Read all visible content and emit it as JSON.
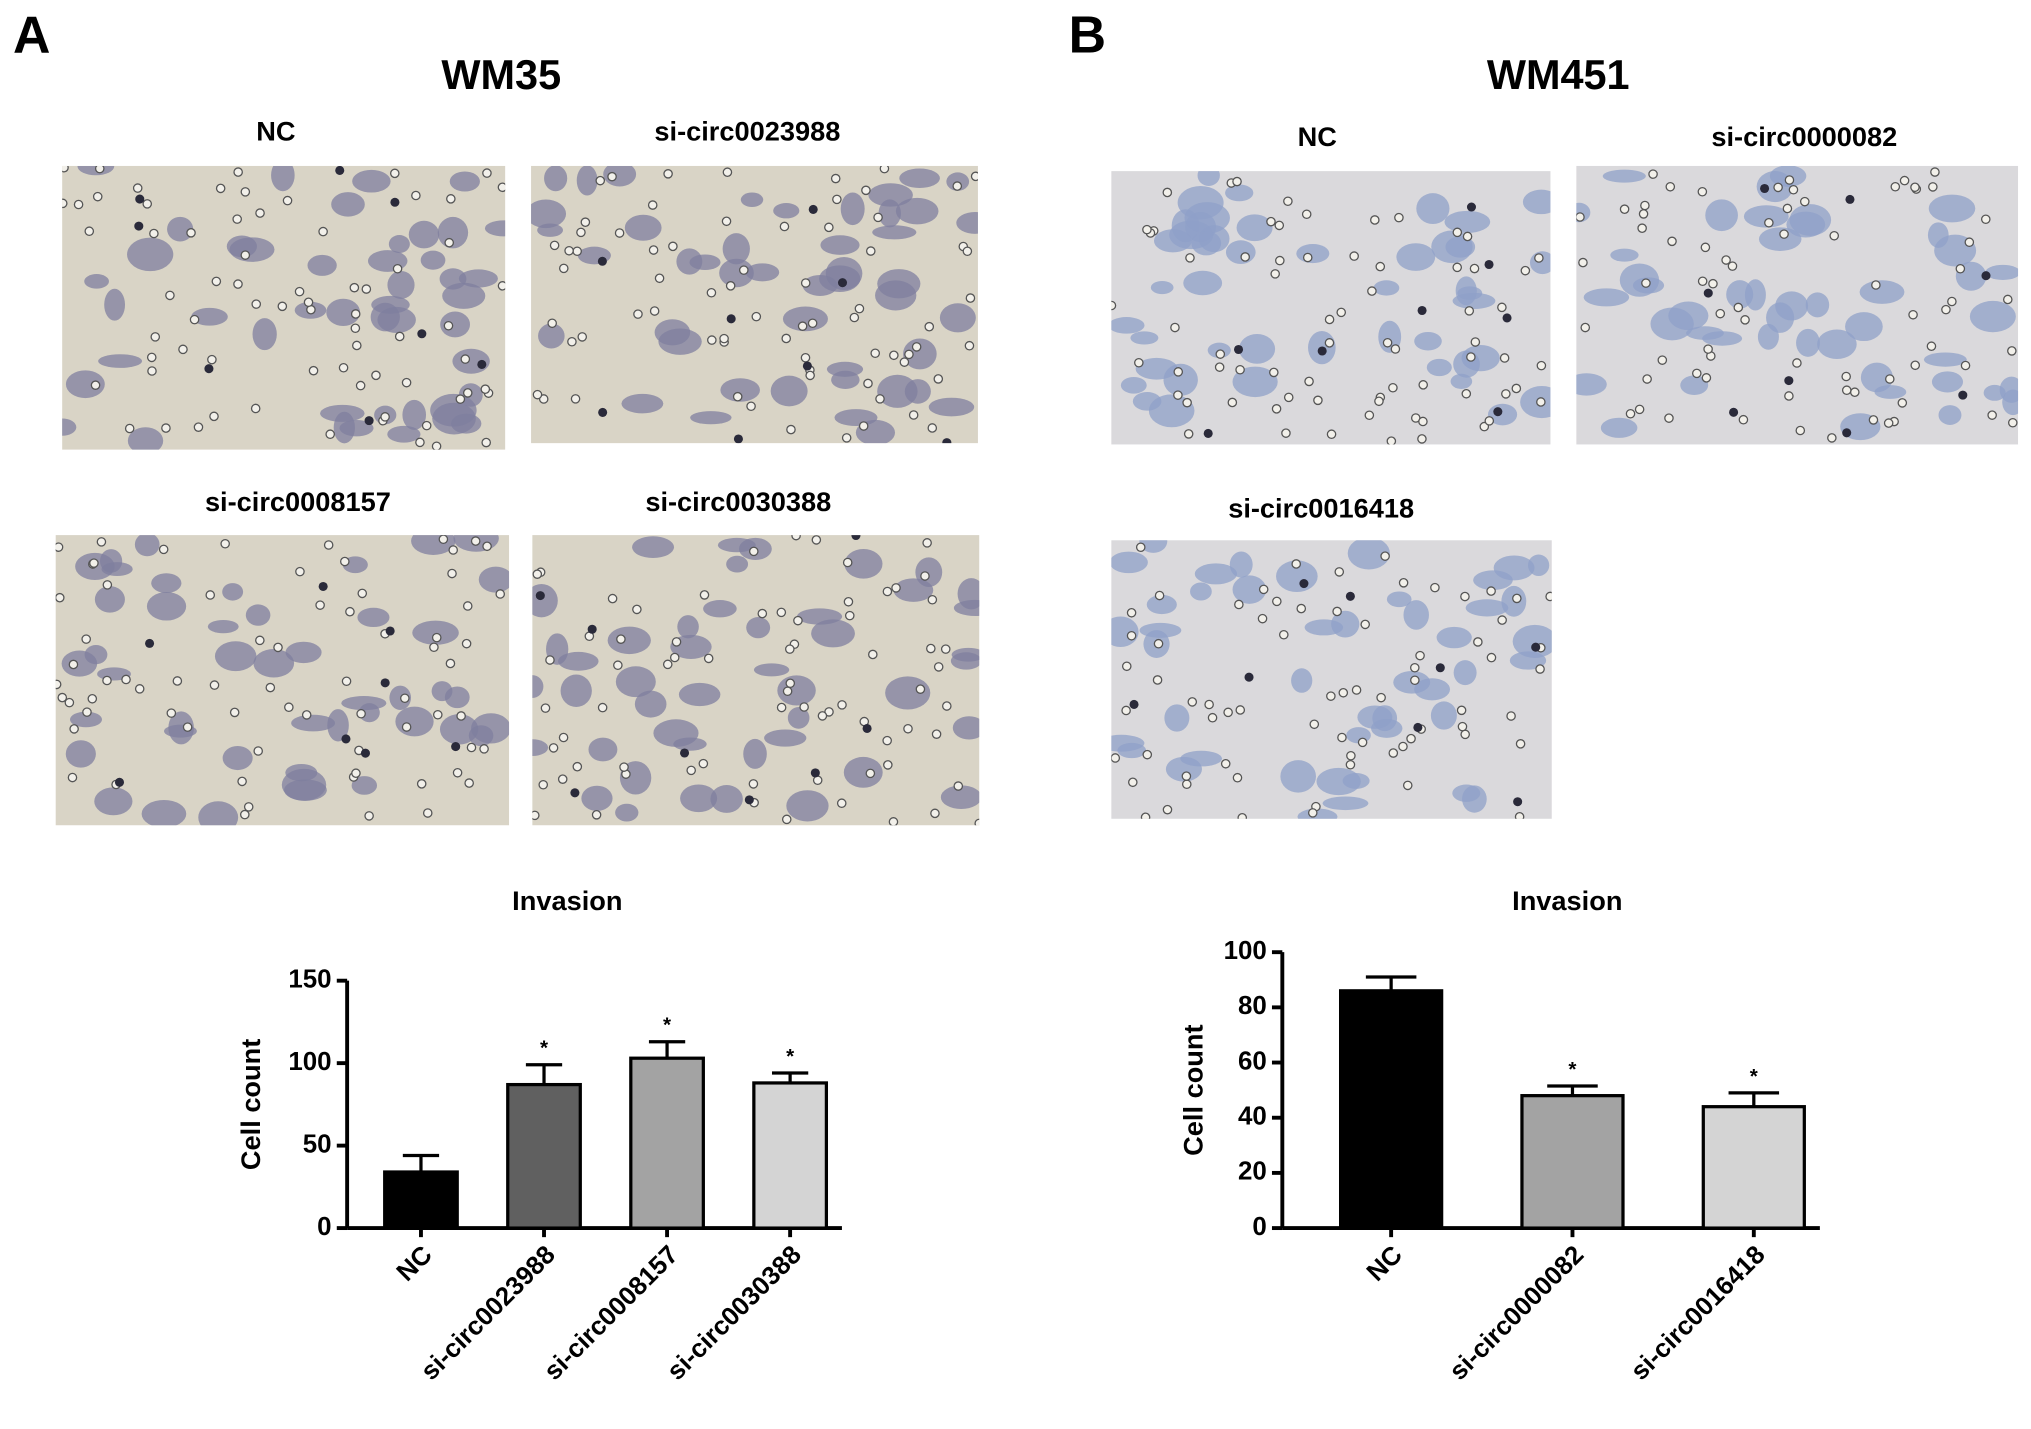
{
  "panels": [
    {
      "label": "A",
      "title": "WM35",
      "captions": [
        "NC",
        "si-circ0023988",
        "si-circ0008157",
        "si-circ0030388"
      ]
    },
    {
      "label": "B",
      "title": "WM451",
      "captions": [
        "NC",
        "si-circ0000082",
        "si-circ0016418"
      ]
    }
  ],
  "chart_data": [
    {
      "type": "bar",
      "title": "Invasion",
      "y_label": "Cell count",
      "categories": [
        "NC",
        "si-circ0023988",
        "si-circ0008157",
        "si-circ0030388"
      ],
      "values": [
        34,
        87,
        103,
        88
      ],
      "errors": [
        10,
        12,
        10,
        6
      ],
      "significance": [
        null,
        "*",
        "*",
        "*"
      ],
      "colors": [
        "#000000",
        "#606060",
        "#a3a3a3",
        "#d4d4d4"
      ],
      "ylim": [
        0,
        150
      ],
      "yticks": [
        0,
        50,
        100,
        150
      ],
      "grid": false
    },
    {
      "type": "bar",
      "title": "Invasion",
      "y_label": "Cell count",
      "categories": [
        "NC",
        "si-circ0000082",
        "si-circ0016418"
      ],
      "values": [
        86,
        48,
        44
      ],
      "errors": [
        5,
        3.5,
        5
      ],
      "significance": [
        null,
        "*",
        "*"
      ],
      "colors": [
        "#000000",
        "#a3a3a3",
        "#d4d4d4"
      ],
      "ylim": [
        0,
        100
      ],
      "yticks": [
        0,
        20,
        40,
        60,
        80,
        100
      ],
      "grid": false
    }
  ]
}
